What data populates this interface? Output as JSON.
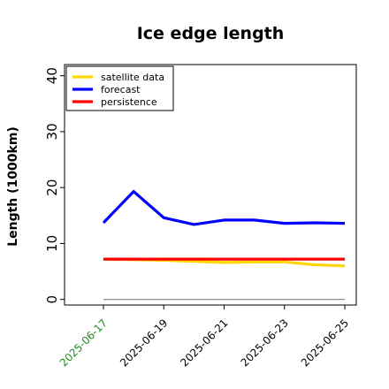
{
  "chart_data": {
    "type": "line",
    "title": "Ice edge length",
    "xlabel": "",
    "ylabel": "Length (1000km)",
    "x": [
      "2025-06-17",
      "2025-06-18",
      "2025-06-19",
      "2025-06-20",
      "2025-06-21",
      "2025-06-22",
      "2025-06-23",
      "2025-06-24",
      "2025-06-25"
    ],
    "xticks": [
      "2025-06-17",
      "2025-06-19",
      "2025-06-21",
      "2025-06-23",
      "2025-06-25"
    ],
    "xtick_colors": [
      "#228b22",
      "#000000",
      "#000000",
      "#000000",
      "#000000"
    ],
    "ylim": [
      -1,
      42
    ],
    "yticks": [
      0,
      10,
      20,
      30,
      40
    ],
    "grid": false,
    "legend": "top-left",
    "series": [
      {
        "name": "satellite data",
        "color": "#ffd700",
        "values": [
          7.2,
          7.1,
          7.0,
          6.8,
          6.6,
          6.7,
          6.7,
          6.2,
          6.0
        ]
      },
      {
        "name": "forecast",
        "color": "#0000ff",
        "values": [
          13.7,
          19.3,
          14.6,
          13.4,
          14.2,
          14.2,
          13.6,
          13.7,
          13.6
        ]
      },
      {
        "name": "persistence",
        "color": "#ff0000",
        "values": [
          7.2,
          7.2,
          7.2,
          7.2,
          7.2,
          7.2,
          7.2,
          7.2,
          7.2
        ]
      }
    ],
    "reference_line": {
      "value": 0,
      "color": "#808080"
    }
  }
}
